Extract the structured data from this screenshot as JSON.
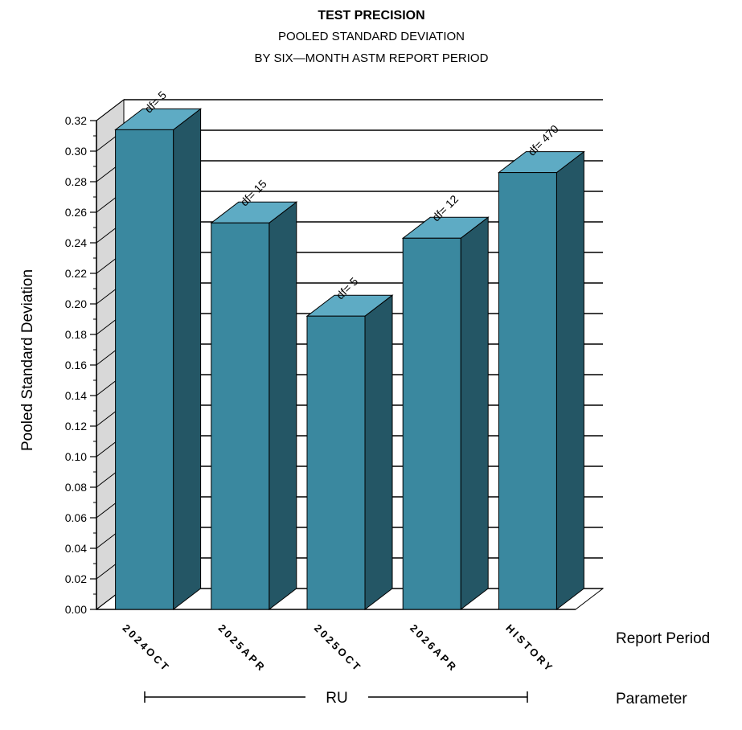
{
  "chart_data": {
    "type": "bar",
    "title": "TEST PRECISION",
    "subtitle1": "POOLED STANDARD DEVIATION",
    "subtitle2": "BY SIX—MONTH ASTM REPORT PERIOD",
    "ylabel": "Pooled Standard Deviation",
    "xlabel": "Report Period",
    "group_axis_label": "Parameter",
    "group_name": "RU",
    "ylim": [
      0,
      0.32
    ],
    "yticks": [
      "0.00",
      "0.02",
      "0.04",
      "0.06",
      "0.08",
      "0.10",
      "0.12",
      "0.14",
      "0.16",
      "0.18",
      "0.20",
      "0.22",
      "0.24",
      "0.26",
      "0.28",
      "0.30",
      "0.32"
    ],
    "categories": [
      "2024OCT",
      "2025APR",
      "2025OCT",
      "2026APR",
      "HISTORY"
    ],
    "values": [
      0.314,
      0.253,
      0.192,
      0.243,
      0.286
    ],
    "bar_labels": [
      "df= 5",
      "df= 15",
      "df= 5",
      "df= 12",
      "df= 470"
    ],
    "colors": {
      "front": "#3a889f",
      "side": "#245665",
      "top": "#5eabc4",
      "wall": "#d8d8d8"
    }
  }
}
